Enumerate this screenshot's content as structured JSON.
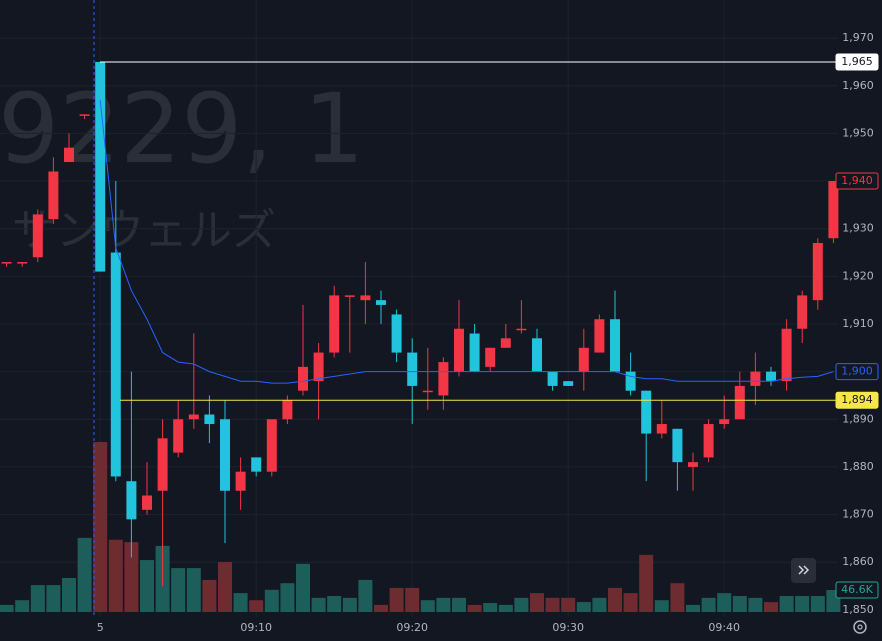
{
  "chart_data": {
    "type": "candlestick",
    "watermark_symbol": "9229, 1",
    "watermark_name": "サンウェルズ",
    "categories": [
      null,
      null,
      null,
      null,
      null,
      null,
      "5",
      null,
      null,
      null,
      null,
      null,
      null,
      null,
      null,
      null,
      "09:10",
      null,
      null,
      null,
      null,
      null,
      null,
      null,
      null,
      null,
      "09:20",
      null,
      null,
      null,
      null,
      null,
      null,
      null,
      null,
      null,
      "09:30",
      null,
      null,
      null,
      null,
      null,
      null,
      null,
      null,
      null,
      "09:40",
      null,
      null,
      null,
      null,
      null,
      null,
      null
    ],
    "open": [
      1923,
      1923,
      1924,
      1932,
      1944,
      1954,
      1965,
      1925,
      1877,
      1871,
      1875,
      1883,
      1890,
      1891,
      1890,
      1875,
      1882,
      1879,
      1890,
      1896,
      1898,
      1904,
      1916,
      1915,
      1915,
      1912,
      1904,
      1896,
      1895,
      1900,
      1908,
      1901,
      1905,
      1909,
      1907,
      1900,
      1898,
      1900,
      1904,
      1911,
      1900,
      1896,
      1887,
      1888,
      1880,
      1882,
      1889,
      1890,
      1897,
      1900,
      1898,
      1909,
      1915,
      1928
    ],
    "high": [
      1923,
      1923,
      1934,
      1945,
      1950,
      1954,
      1965,
      1940,
      1900,
      1881,
      1890,
      1894,
      1908,
      1895,
      1894,
      1882,
      1882,
      1890,
      1895,
      1914,
      1906,
      1918,
      1916,
      1923,
      1917,
      1913,
      1907,
      1905,
      1903,
      1915,
      1910,
      1905,
      1910,
      1915,
      1909,
      1900,
      1898,
      1909,
      1912,
      1917,
      1904,
      1896,
      1894,
      1888,
      1883,
      1890,
      1895,
      1900,
      1904,
      1901,
      1911,
      1917,
      1928,
      1940
    ],
    "low": [
      1922,
      1922,
      1923,
      1931,
      1944,
      1953,
      1921,
      1877,
      1861,
      1870,
      1855,
      1882,
      1888,
      1885,
      1864,
      1871,
      1878,
      1878,
      1889,
      1895,
      1890,
      1903,
      1904,
      1910,
      1910,
      1902,
      1889,
      1892,
      1892,
      1899,
      1900,
      1900,
      1905,
      1908,
      1900,
      1896,
      1897,
      1896,
      1904,
      1900,
      1895,
      1877,
      1886,
      1875,
      1875,
      1881,
      1888,
      1890,
      1893,
      1897,
      1896,
      1906,
      1913,
      1927
    ],
    "close": [
      1923,
      1923,
      1933,
      1942,
      1947,
      1954,
      1921,
      1878,
      1869,
      1874,
      1886,
      1890,
      1891,
      1889,
      1875,
      1879,
      1879,
      1890,
      1894,
      1901,
      1904,
      1916,
      1916,
      1916,
      1914,
      1904,
      1897,
      1896,
      1902,
      1909,
      1900,
      1905,
      1907,
      1909,
      1900,
      1897,
      1897,
      1905,
      1911,
      1900,
      1896,
      1887,
      1889,
      1881,
      1881,
      1889,
      1890,
      1897,
      1900,
      1898,
      1909,
      1916,
      1927,
      1940
    ],
    "up_color": "#f23645",
    "down_color": "#22c3dc",
    "volume": {
      "values": [
        15,
        25,
        57,
        57,
        72,
        157,
        360,
        153,
        148,
        110,
        140,
        93,
        93,
        68,
        106,
        40,
        25,
        47,
        61,
        102,
        30,
        34,
        30,
        68,
        15,
        51,
        51,
        25,
        30,
        30,
        15,
        19,
        15,
        30,
        40,
        30,
        30,
        21,
        30,
        51,
        40,
        121,
        25,
        61,
        15,
        30,
        40,
        34,
        30,
        21,
        34,
        34,
        34,
        46.6
      ],
      "up_color": "#1d5e5a",
      "down_color": "#6e2b30",
      "last_label": "46.6K",
      "label_color": "#26a69a"
    },
    "vwap": {
      "color": "#2962ff",
      "values": [
        null,
        null,
        null,
        null,
        null,
        null,
        1957,
        1926,
        1917,
        1911,
        1904,
        1902,
        1901.6,
        1900,
        1899,
        1898,
        1898,
        1897.6,
        1897.6,
        1898,
        1898.5,
        1899,
        1899.5,
        1900,
        1900,
        1900,
        1900,
        1900,
        1900,
        1900,
        1900,
        1900,
        1900,
        1900,
        1900,
        1900,
        1900,
        1900,
        1900,
        1900,
        1899,
        1898.5,
        1898.5,
        1898,
        1898,
        1898,
        1898,
        1898,
        1898,
        1898,
        1898.5,
        1898.8,
        1899,
        1900
      ]
    },
    "ylim": [
      1848.5,
      1978
    ],
    "yticks": [
      {
        "value": 1850,
        "label": "1,850"
      },
      {
        "value": 1860,
        "label": "1,860"
      },
      {
        "value": 1870,
        "label": "1,870"
      },
      {
        "value": 1880,
        "label": "1,880"
      },
      {
        "value": 1890,
        "label": "1,890"
      },
      {
        "value": 1900,
        "label": "1,900"
      },
      {
        "value": 1910,
        "label": "1,910"
      },
      {
        "value": 1920,
        "label": "1,920"
      },
      {
        "value": 1930,
        "label": "1,930"
      },
      {
        "value": 1940,
        "label": "1,940"
      },
      {
        "value": 1950,
        "label": "1,950"
      },
      {
        "value": 1960,
        "label": "1,960"
      },
      {
        "value": 1970,
        "label": "1,970"
      }
    ],
    "grid": true,
    "price_labels": [
      {
        "value": 1965,
        "label": "1,965",
        "color": "#ffffff",
        "style": "filled",
        "line": true
      },
      {
        "value": 1940,
        "label": "1,940",
        "color": "#f23645",
        "style": "outline",
        "line": false
      },
      {
        "value": 1900,
        "label": "1,900",
        "color": "#2962ff",
        "style": "outline",
        "line": false
      },
      {
        "value": 1894,
        "label": "1,894",
        "color": "#f7e64a",
        "style": "filled",
        "line": true
      }
    ]
  }
}
